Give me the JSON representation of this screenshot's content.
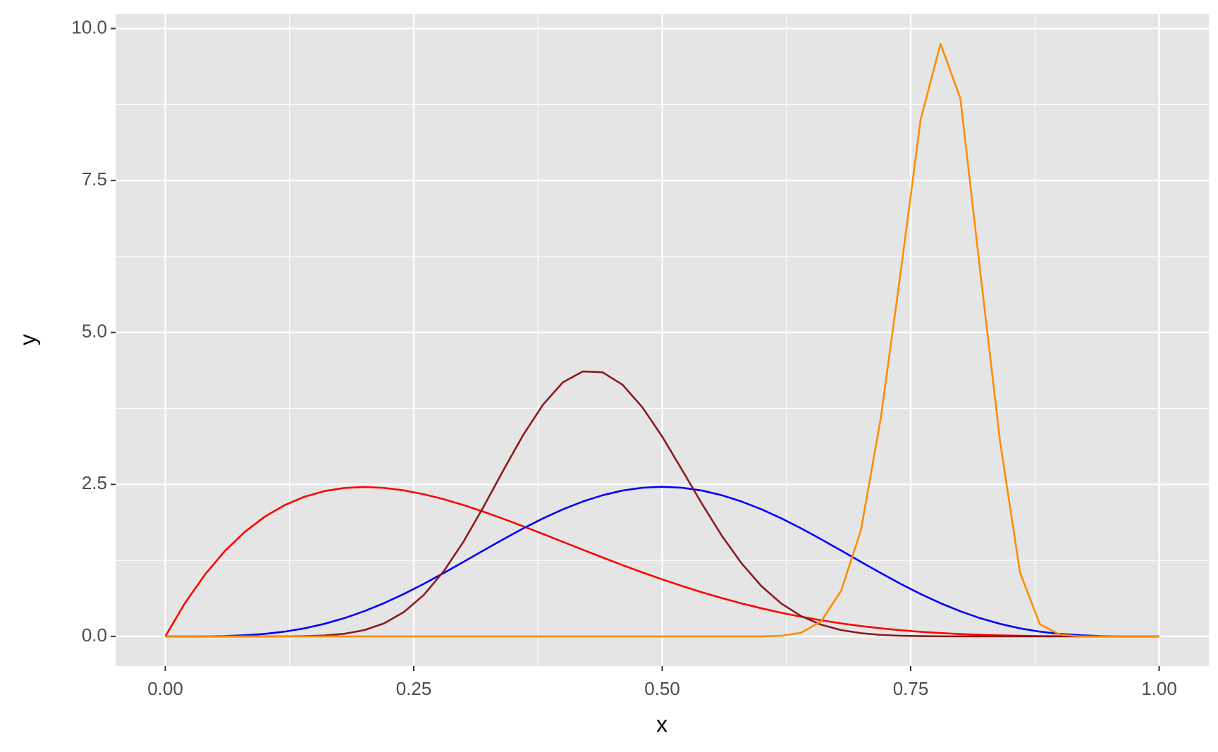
{
  "chart_data": {
    "type": "line",
    "x_label": "x",
    "y_label": "y",
    "x": [
      0,
      0.02,
      0.04,
      0.06,
      0.08,
      0.1,
      0.12,
      0.14,
      0.16,
      0.18,
      0.2,
      0.22,
      0.24,
      0.26,
      0.28,
      0.3,
      0.32,
      0.34,
      0.36,
      0.38,
      0.4,
      0.42,
      0.44,
      0.46,
      0.48,
      0.5,
      0.52,
      0.54,
      0.56,
      0.58,
      0.6,
      0.62,
      0.64,
      0.66,
      0.68,
      0.7,
      0.72,
      0.74,
      0.76,
      0.78,
      0.8,
      0.82,
      0.84,
      0.86,
      0.88,
      0.9,
      0.92,
      0.94,
      0.96,
      0.98,
      1
    ],
    "series": [
      {
        "color": "#ff0000",
        "values": [
          0,
          0.553,
          1.019,
          1.405,
          1.719,
          1.968,
          2.159,
          2.297,
          2.39,
          2.441,
          2.458,
          2.443,
          2.402,
          2.339,
          2.257,
          2.161,
          2.052,
          1.935,
          1.812,
          1.685,
          1.555,
          1.426,
          1.298,
          1.173,
          1.053,
          0.938,
          0.828,
          0.725,
          0.63,
          0.541,
          0.461,
          0.388,
          0.323,
          0.265,
          0.214,
          0.17,
          0.133,
          0.101,
          0.076,
          0.055,
          0.038,
          0.026,
          0.017,
          0.01,
          0.005,
          0.003,
          0.001,
          0,
          0,
          0,
          0
        ]
      },
      {
        "color": "#0000ff",
        "values": [
          0,
          0,
          0.001,
          0.006,
          0.019,
          0.041,
          0.078,
          0.132,
          0.206,
          0.299,
          0.413,
          0.546,
          0.697,
          0.863,
          1.041,
          1.225,
          1.412,
          1.597,
          1.775,
          1.941,
          2.09,
          2.218,
          2.322,
          2.399,
          2.445,
          2.461,
          2.445,
          2.399,
          2.322,
          2.218,
          2.09,
          1.941,
          1.775,
          1.597,
          1.412,
          1.225,
          1.041,
          0.863,
          0.697,
          0.546,
          0.413,
          0.299,
          0.206,
          0.132,
          0.078,
          0.041,
          0.019,
          0.006,
          0.001,
          0,
          0
        ]
      },
      {
        "color": "#8b1a1a",
        "values": [
          0,
          0,
          0,
          0,
          0,
          0,
          0.001,
          0.005,
          0.015,
          0.043,
          0.102,
          0.213,
          0.399,
          0.68,
          1.068,
          1.557,
          2.126,
          2.729,
          3.31,
          3.811,
          4.179,
          4.358,
          4.345,
          4.141,
          3.77,
          3.287,
          2.737,
          2.181,
          1.655,
          1.198,
          0.824,
          0.538,
          0.332,
          0.192,
          0.104,
          0.053,
          0.024,
          0.01,
          0.004,
          0.001,
          0,
          0,
          0,
          0,
          0,
          0,
          0,
          0,
          0,
          0,
          0
        ]
      },
      {
        "color": "#ff8c00",
        "values": [
          0,
          0,
          0,
          0,
          0,
          0,
          0,
          0,
          0,
          0,
          0,
          0,
          0,
          0,
          0,
          0,
          0,
          0,
          0,
          0,
          0,
          0,
          0,
          0,
          0,
          0,
          0,
          0,
          0,
          0,
          0,
          0.01,
          0.06,
          0.25,
          0.75,
          1.75,
          3.6,
          6.0,
          8.5,
          9.75,
          8.85,
          6.0,
          3.2,
          1.05,
          0.2,
          0.03,
          0,
          0,
          0,
          0,
          0
        ]
      }
    ],
    "xlim": [
      -0.05,
      1.05
    ],
    "xticks": [
      {
        "value": 0,
        "label": "0.00"
      },
      0.25,
      {
        "value": 0.5,
        "label": "0.50"
      },
      0.75,
      {
        "value": 1,
        "label": "1.00"
      }
    ],
    "ylim": [
      -0.4875,
      10.2375
    ],
    "yticks": [
      {
        "value": 0,
        "label": "0.0"
      },
      2.5,
      {
        "value": 5,
        "label": "5.0"
      },
      7.5,
      {
        "value": 10,
        "label": "10.0"
      }
    ],
    "grid": true
  }
}
